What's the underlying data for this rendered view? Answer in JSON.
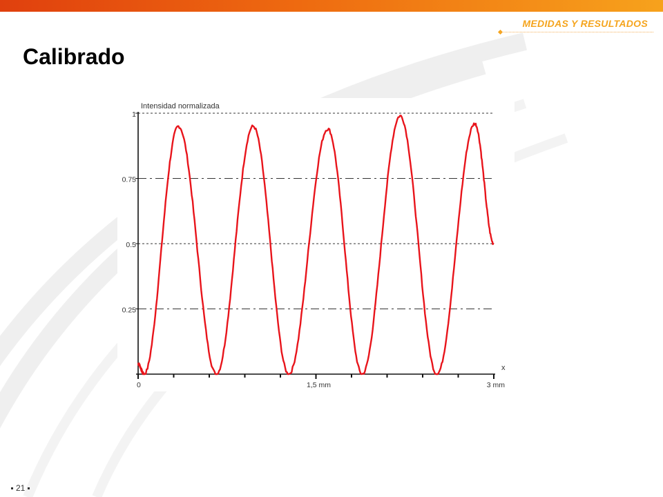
{
  "header": {
    "section": "MEDIDAS Y RESULTADOS",
    "accent_color": "#f5a41d"
  },
  "page": {
    "title": "Calibrado",
    "number": "21"
  },
  "chart_data": {
    "type": "line",
    "title": "",
    "ylabel": "Intensidad normalizada",
    "xlabel": "x",
    "xlim": [
      0,
      3
    ],
    "ylim": [
      0,
      1
    ],
    "x_tick_labels": [
      {
        "x": 0,
        "label": "0"
      },
      {
        "x": 1.5,
        "label": "1,5 mm"
      },
      {
        "x": 3,
        "label": "3 mm"
      }
    ],
    "x_minor_ticks": [
      0.3,
      0.6,
      0.9,
      1.2,
      1.8,
      2.1,
      2.4,
      2.7
    ],
    "y_tick_labels": [
      {
        "y": 1,
        "label": "1"
      },
      {
        "y": 0.75,
        "label": "0.75"
      },
      {
        "y": 0.5,
        "label": "0.5"
      },
      {
        "y": 0.25,
        "label": "0.25"
      }
    ],
    "reference_lines": [
      {
        "y": 1,
        "style": "dotted"
      },
      {
        "y": 0.75,
        "style": "dash-dot"
      },
      {
        "y": 0.5,
        "style": "dotted"
      },
      {
        "y": 0.25,
        "style": "dash-dot"
      }
    ],
    "grid": false,
    "series": [
      {
        "color": "#e8141b",
        "peaks": [
          {
            "x": 0.34,
            "y": 0.95
          },
          {
            "x": 0.97,
            "y": 0.95
          },
          {
            "x": 1.6,
            "y": 0.94
          },
          {
            "x": 2.21,
            "y": 0.99
          },
          {
            "x": 2.84,
            "y": 0.96
          }
        ],
        "valleys": [
          {
            "x": 0.05,
            "y": 0.0
          },
          {
            "x": 0.66,
            "y": 0.0
          },
          {
            "x": 1.27,
            "y": 0.0
          },
          {
            "x": 1.89,
            "y": 0.0
          },
          {
            "x": 2.52,
            "y": 0.0
          }
        ],
        "start": {
          "x": 0.0,
          "y": 0.04
        },
        "end": {
          "x": 3.0,
          "y": 0.5
        }
      }
    ]
  }
}
